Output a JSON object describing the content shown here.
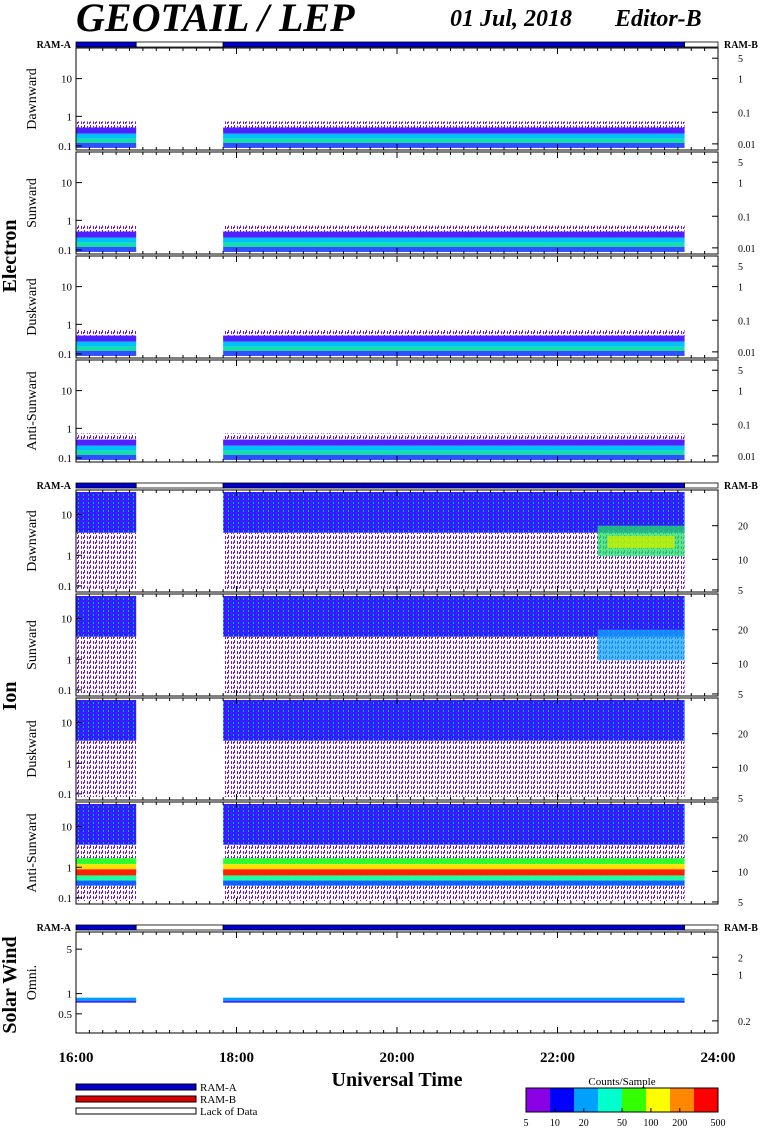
{
  "header": {
    "title": "GEOTAIL / LEP",
    "date": "01 Jul, 2018",
    "editor": "Editor-B"
  },
  "colors": {
    "ram_a": "#0000cc",
    "ram_b": "#dd0000",
    "lack": "#ffffff"
  },
  "chart_data": {
    "type": "heatmap",
    "x_axis": {
      "label": "Universal Time",
      "range": [
        "16:00",
        "24:00"
      ],
      "ticks": [
        "16:00",
        "18:00",
        "20:00",
        "22:00",
        "24:00"
      ]
    },
    "data_gap": {
      "start": "16:45",
      "end": "17:50"
    },
    "coverage": [
      {
        "start": "16:00",
        "end": "16:45",
        "mode": "RAM-A"
      },
      {
        "start": "16:45",
        "end": "17:50",
        "mode": "Lack of Data"
      },
      {
        "start": "17:50",
        "end": "23:35",
        "mode": "RAM-A"
      },
      {
        "start": "23:35",
        "end": "24:00",
        "mode": "Lack of Data"
      }
    ],
    "groups": [
      {
        "name": "Electron",
        "ram_left": "RAM-A",
        "ram_right": "RAM-B",
        "panels": [
          {
            "label": "Dawnward",
            "y_ticks": [
              "10",
              "1",
              "0.1"
            ],
            "right_ticks": [
              "5",
              "1",
              "0.1",
              "0.01"
            ]
          },
          {
            "label": "Sunward",
            "y_ticks": [
              "10",
              "1",
              "0.1"
            ],
            "right_ticks": [
              "5",
              "1",
              "0.1",
              "0.01"
            ]
          },
          {
            "label": "Duskward",
            "y_ticks": [
              "10",
              "1",
              "0.1"
            ],
            "right_ticks": [
              "5",
              "1",
              "0.1",
              "0.01"
            ]
          },
          {
            "label": "Anti-Sunward",
            "y_ticks": [
              "10",
              "1",
              "0.1"
            ],
            "right_ticks": [
              "5",
              "1",
              "0.1",
              "0.01"
            ]
          }
        ]
      },
      {
        "name": "Ion",
        "ram_left": "RAM-A",
        "ram_right": "RAM-B",
        "panels": [
          {
            "label": "Dawnward",
            "y_ticks": [
              "10",
              "1",
              "0.1"
            ],
            "right_ticks": [
              "20",
              "10",
              "5"
            ]
          },
          {
            "label": "Sunward",
            "y_ticks": [
              "10",
              "1",
              "0.1"
            ],
            "right_ticks": [
              "20",
              "10",
              "5"
            ]
          },
          {
            "label": "Duskward",
            "y_ticks": [
              "10",
              "1",
              "0.1"
            ],
            "right_ticks": [
              "20",
              "10",
              "5"
            ]
          },
          {
            "label": "Anti-Sunward",
            "y_ticks": [
              "10",
              "1",
              "0.1"
            ],
            "right_ticks": [
              "20",
              "10",
              "5"
            ]
          }
        ]
      },
      {
        "name": "Solar Wind",
        "ram_left": "RAM-A",
        "ram_right": "RAM-B",
        "panels": [
          {
            "label": "Omni.",
            "y_ticks": [
              "5",
              "1",
              "0.5"
            ],
            "right_ticks": [
              "2",
              "1",
              "0.2"
            ]
          }
        ]
      }
    ],
    "legend": [
      {
        "name": "RAM-A",
        "color": "#0000cc"
      },
      {
        "name": "RAM-B",
        "color": "#dd0000"
      },
      {
        "name": "Lack of Data",
        "color": "#ffffff"
      }
    ],
    "colorbar": {
      "label": "Counts/Sample",
      "ticks": [
        "5",
        "10",
        "20",
        "50",
        "100",
        "200",
        "500"
      ],
      "colors": [
        "#8a00e6",
        "#0000ff",
        "#00a0ff",
        "#00ffcc",
        "#33ff00",
        "#ffff00",
        "#ff8800",
        "#ff0000"
      ]
    }
  }
}
